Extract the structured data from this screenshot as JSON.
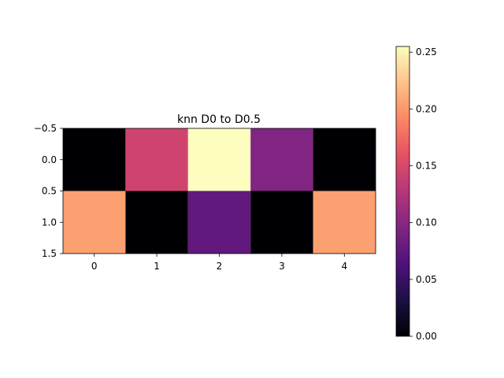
{
  "chart_data": {
    "type": "heatmap",
    "title": "knn D0 to D0.5",
    "xlabel": "",
    "ylabel": "",
    "colormap": "magma",
    "vmin": 0.0,
    "vmax": 0.255,
    "values": [
      [
        0.0,
        0.145,
        0.255,
        0.095,
        0.0
      ],
      [
        0.205,
        0.0,
        0.075,
        0.0,
        0.205
      ]
    ],
    "x_ticks": [
      0,
      1,
      2,
      3,
      4
    ],
    "y_ticks": [
      -0.5,
      0.0,
      0.5,
      1.0,
      1.5
    ],
    "y_tick_labels": [
      "−0.5",
      "0.0",
      "0.5",
      "1.0",
      "1.5"
    ],
    "xlim": [
      -0.5,
      4.5
    ],
    "ylim": [
      -0.5,
      1.5
    ],
    "colorbar": {
      "ticks": [
        0.0,
        0.05,
        0.1,
        0.15,
        0.2,
        0.25
      ],
      "tick_labels": [
        "0.00",
        "0.05",
        "0.10",
        "0.15",
        "0.20",
        "0.25"
      ]
    },
    "grid": false
  }
}
